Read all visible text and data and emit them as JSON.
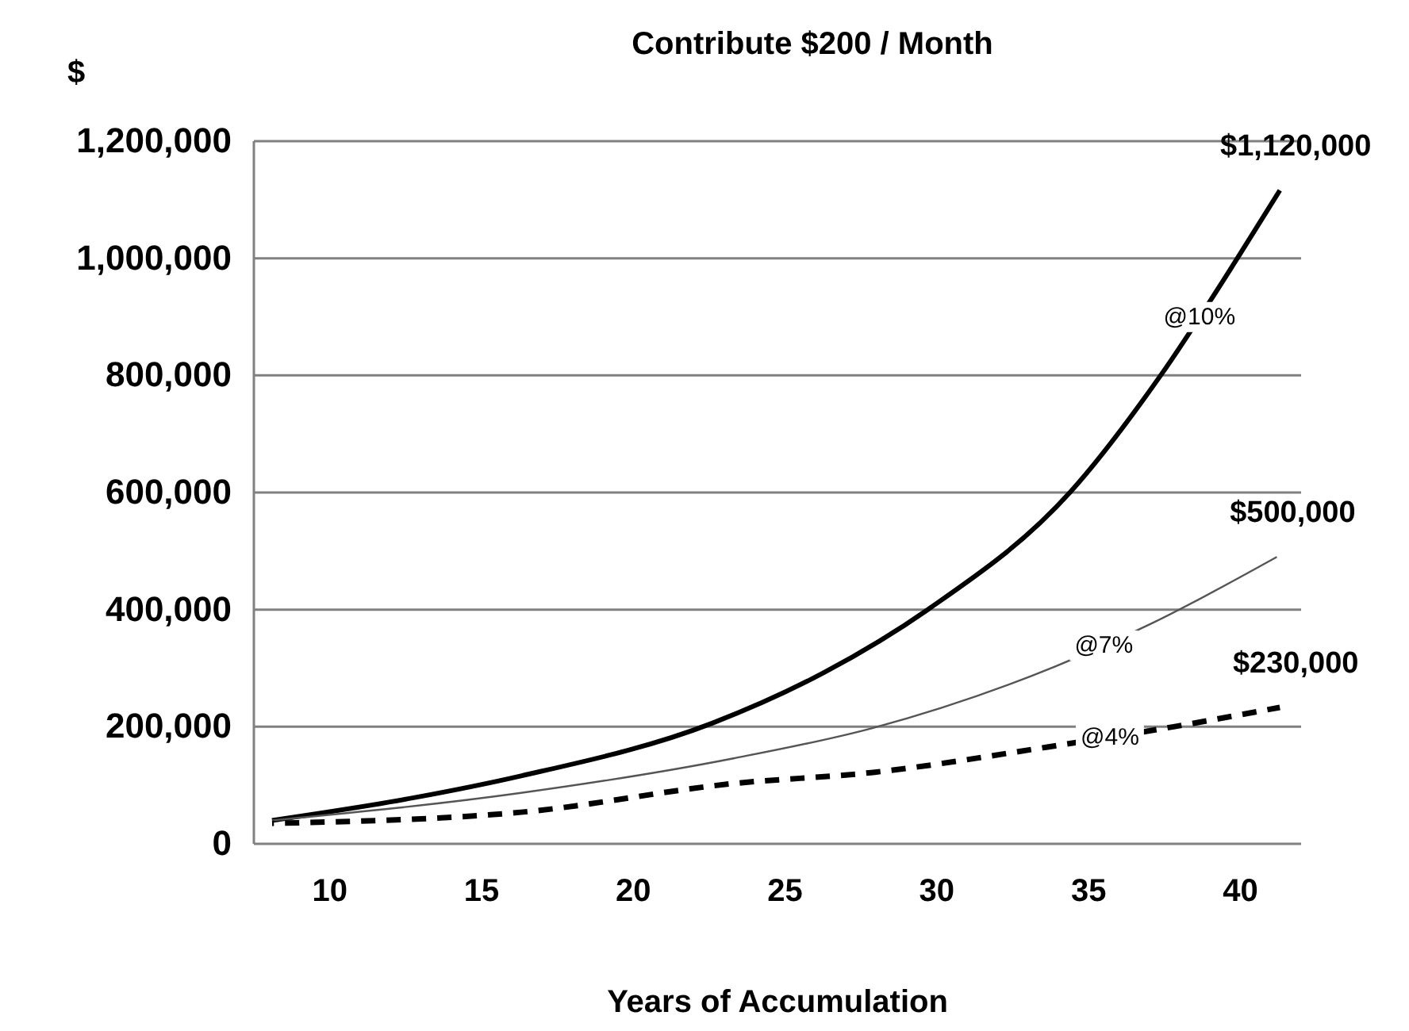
{
  "chart_data": {
    "type": "line",
    "title": "Contribute $200 / Month",
    "xlabel": "Years of Accumulation",
    "ylabel": "$",
    "xlim": [
      7.5,
      42
    ],
    "xticks": [
      10,
      15,
      20,
      25,
      30,
      35,
      40
    ],
    "ylim": [
      0,
      1200000
    ],
    "yticks": [
      {
        "value": 0,
        "label": "0"
      },
      {
        "value": 200000,
        "label": "200,000"
      },
      {
        "value": 400000,
        "label": "400,000"
      },
      {
        "value": 600000,
        "label": "600,000"
      },
      {
        "value": 800000,
        "label": "800,000"
      },
      {
        "value": 1000000,
        "label": "1,000,000"
      },
      {
        "value": 1200000,
        "label": "1,200,000"
      }
    ],
    "grid": "y",
    "legend": false,
    "marker": "none",
    "series": [
      {
        "name": "@10%",
        "color": "#000000",
        "line_style": "solid",
        "x": [
          8.1,
          12.8,
          16.3,
          22.6,
          26.3,
          29.7,
          34.4,
          37.4,
          39.9,
          41.3
        ],
        "values": [
          40000,
          79000,
          116000,
          206000,
          293000,
          400000,
          601000,
          802000,
          1000000,
          1116000
        ]
      },
      {
        "name": "@7%",
        "color": "#555555",
        "line_style": "solid",
        "x": [
          8.1,
          16.3,
          23.3,
          27.9,
          33.9,
          37.1,
          41.2
        ],
        "values": [
          40000,
          87000,
          146000,
          198000,
          303000,
          377000,
          490000
        ]
      },
      {
        "name": "@4%",
        "color": "#000000",
        "line_style": "dashed",
        "x": [
          8.1,
          16.3,
          23.3,
          27.9,
          33.6,
          37.8,
          41.3
        ],
        "values": [
          35000,
          54000,
          103000,
          122000,
          165000,
          200000,
          233000
        ]
      }
    ],
    "annotations": [
      "$1,120,000",
      "$500,000",
      "$230,000"
    ]
  }
}
